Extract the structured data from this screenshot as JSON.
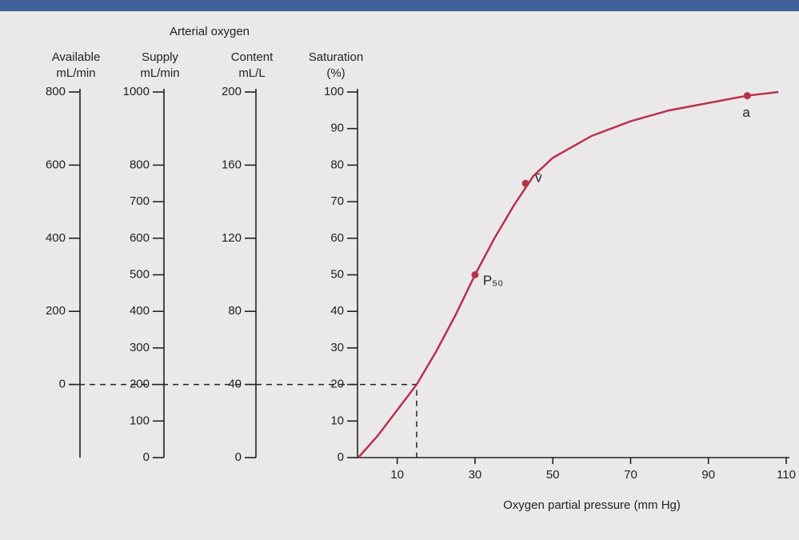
{
  "chart_data": {
    "type": "line",
    "header": "Arterial oxygen",
    "xlabel": "Oxygen partial pressure (mm Hg)",
    "xlim": [
      0,
      110
    ],
    "xticks": [
      10,
      30,
      50,
      70,
      90,
      110
    ],
    "ylabel": [
      "Saturation",
      "(%)"
    ],
    "ylim": [
      0,
      100
    ],
    "yticks": [
      0,
      10,
      20,
      30,
      40,
      50,
      60,
      70,
      80,
      90,
      100
    ],
    "extra_axes": [
      {
        "label": [
          "Available",
          "mL/min"
        ],
        "ylim": [
          -200,
          800
        ],
        "yticks": [
          0,
          200,
          400,
          600,
          800
        ]
      },
      {
        "label": [
          "Supply",
          "mL/min"
        ],
        "ylim": [
          0,
          1000
        ],
        "yticks": [
          0,
          100,
          200,
          300,
          400,
          500,
          600,
          700,
          800,
          1000
        ]
      },
      {
        "label": [
          "Content",
          "mL/L"
        ],
        "ylim": [
          0,
          200
        ],
        "yticks": [
          0,
          40,
          80,
          120,
          160,
          200
        ]
      }
    ],
    "x": [
      0,
      5,
      10,
      15,
      20,
      25,
      30,
      35,
      40,
      45,
      50,
      60,
      70,
      80,
      90,
      100,
      108
    ],
    "series": [
      {
        "color": "#b8324a",
        "values": [
          0,
          6,
          13,
          20,
          29,
          39,
          50,
          60,
          69,
          77,
          82,
          88,
          92,
          95,
          97,
          99,
          100
        ]
      }
    ],
    "points": [
      {
        "label": "P₅₀",
        "x": 30,
        "y": 50
      },
      {
        "label": "v̄",
        "x": 43,
        "y": 75
      },
      {
        "label": "a",
        "x": 100,
        "y": 99
      }
    ],
    "reference": {
      "x": 15,
      "y": 20
    }
  }
}
